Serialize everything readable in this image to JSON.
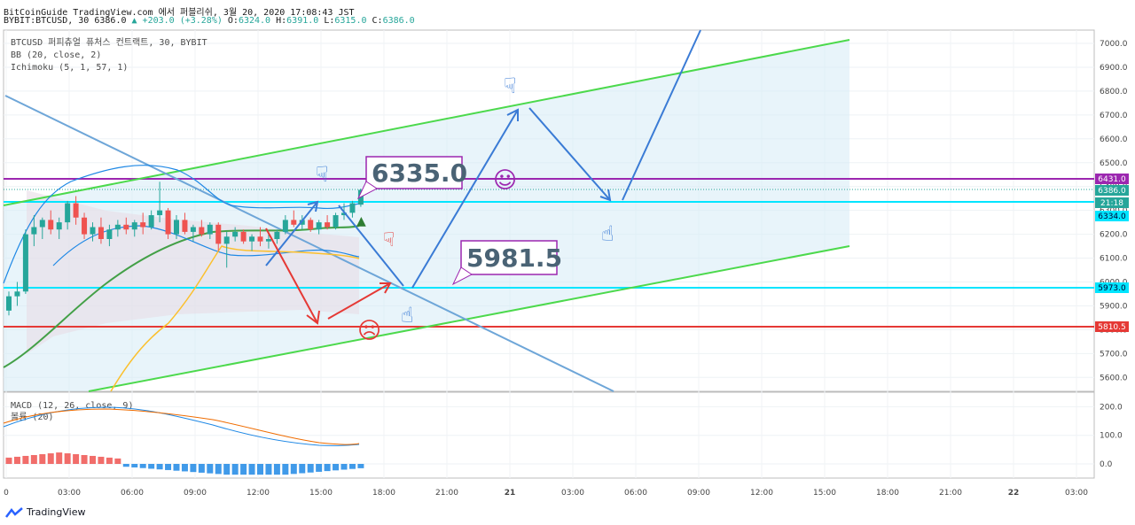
{
  "header": {
    "line1": "BitCoinGuide TradingView.com 에서 퍼블리쉬, 3월 20, 2020 17:08:43 JST",
    "symbol": "BYBIT:BTCUSD, 30",
    "last": "6386.0",
    "change": "▲ +203.0 (+3.28%)",
    "o_label": "O:",
    "o": "6324.0",
    "h_label": "H:",
    "h": "6391.0",
    "l_label": "L:",
    "l": "6315.0",
    "c_label": "C:",
    "c": "6386.0"
  },
  "indicators": {
    "title": "BTCUSD 퍼피츄얼 퓨처스 컨트랙트, 30, BYBIT",
    "bb": "BB (20, close, 2)",
    "ichimoku": "Ichimoku (5, 1, 57, 1)",
    "macd": "MACD (12, 26, close, 9)",
    "vol": "볼륨 (20)"
  },
  "annotations": {
    "box1": "6335.0",
    "box2": "5981.5"
  },
  "price_tags": [
    {
      "label": "6431.0",
      "color": "#9c27b0"
    },
    {
      "label": "6386.0",
      "color": "#26a69a"
    },
    {
      "label": "21:18",
      "color": "#26a69a"
    },
    {
      "label": "6334.0",
      "color": "#00e5ff"
    },
    {
      "label": "5973.0",
      "color": "#00e5ff"
    },
    {
      "label": "5810.5",
      "color": "#e53935"
    }
  ],
  "brand": "TradingView",
  "chart_data": {
    "type": "line",
    "price_axis": {
      "ticks": [
        7000,
        6900,
        6800,
        6700,
        6600,
        6500,
        6400,
        6300,
        6200,
        6100,
        6000,
        5900,
        5800,
        5700,
        5600
      ],
      "labels": [
        "7000.0",
        "6900.0",
        "6800.0",
        "6700.0",
        "6600.0",
        "6500.0",
        "6400.0",
        "6300.0",
        "6200.0",
        "6100.0",
        "6000.0",
        "5900.0",
        "5800.0",
        "5700.0",
        "5600.0"
      ]
    },
    "macd_axis": {
      "ticks": [
        200,
        100,
        0
      ],
      "labels": [
        "200.0",
        "100.0",
        "0.0"
      ]
    },
    "time_axis": {
      "labels": [
        "0",
        "03:00",
        "06:00",
        "09:00",
        "12:00",
        "15:00",
        "18:00",
        "21:00",
        "21",
        "03:00",
        "06:00",
        "09:00",
        "12:00",
        "15:00",
        "18:00",
        "21:00",
        "22",
        "03:00"
      ]
    },
    "horizontal_levels": [
      6431.0,
      6334.0,
      5973.0,
      5810.5
    ],
    "candles": [
      [
        0,
        5880,
        5960,
        5860,
        5940
      ],
      [
        1,
        5940,
        6000,
        5900,
        5960
      ],
      [
        2,
        5960,
        6220,
        5950,
        6200
      ],
      [
        3,
        6200,
        6280,
        6150,
        6230
      ],
      [
        4,
        6230,
        6270,
        6180,
        6260
      ],
      [
        5,
        6260,
        6300,
        6200,
        6220
      ],
      [
        6,
        6220,
        6270,
        6180,
        6250
      ],
      [
        7,
        6250,
        6340,
        6220,
        6330
      ],
      [
        8,
        6330,
        6360,
        6240,
        6270
      ],
      [
        9,
        6270,
        6290,
        6180,
        6200
      ],
      [
        10,
        6200,
        6250,
        6170,
        6230
      ],
      [
        11,
        6230,
        6270,
        6160,
        6180
      ],
      [
        12,
        6180,
        6240,
        6150,
        6220
      ],
      [
        13,
        6220,
        6260,
        6190,
        6240
      ],
      [
        14,
        6240,
        6270,
        6200,
        6220
      ],
      [
        15,
        6220,
        6260,
        6190,
        6250
      ],
      [
        16,
        6250,
        6290,
        6200,
        6230
      ],
      [
        17,
        6230,
        6300,
        6220,
        6280
      ],
      [
        18,
        6280,
        6420,
        6250,
        6300
      ],
      [
        19,
        6300,
        6310,
        6180,
        6200
      ],
      [
        20,
        6200,
        6280,
        6180,
        6260
      ],
      [
        21,
        6260,
        6290,
        6200,
        6210
      ],
      [
        22,
        6210,
        6240,
        6170,
        6230
      ],
      [
        23,
        6230,
        6260,
        6190,
        6200
      ],
      [
        24,
        6200,
        6250,
        6180,
        6240
      ],
      [
        25,
        6240,
        6250,
        6130,
        6160
      ],
      [
        26,
        6160,
        6210,
        6060,
        6190
      ],
      [
        27,
        6190,
        6230,
        6170,
        6210
      ],
      [
        28,
        6210,
        6220,
        6160,
        6170
      ],
      [
        29,
        6170,
        6200,
        6130,
        6190
      ],
      [
        30,
        6190,
        6230,
        6150,
        6170
      ],
      [
        31,
        6170,
        6200,
        6140,
        6180
      ],
      [
        32,
        6180,
        6220,
        6160,
        6210
      ],
      [
        33,
        6210,
        6280,
        6200,
        6260
      ],
      [
        34,
        6260,
        6300,
        6230,
        6240
      ],
      [
        35,
        6240,
        6280,
        6220,
        6260
      ],
      [
        36,
        6260,
        6270,
        6210,
        6220
      ],
      [
        37,
        6220,
        6260,
        6200,
        6250
      ],
      [
        38,
        6250,
        6280,
        6220,
        6230
      ],
      [
        39,
        6230,
        6290,
        6220,
        6280
      ],
      [
        40,
        6280,
        6330,
        6260,
        6290
      ],
      [
        41,
        6290,
        6340,
        6270,
        6330
      ],
      [
        42,
        6324,
        6391,
        6315,
        6386
      ]
    ]
  }
}
